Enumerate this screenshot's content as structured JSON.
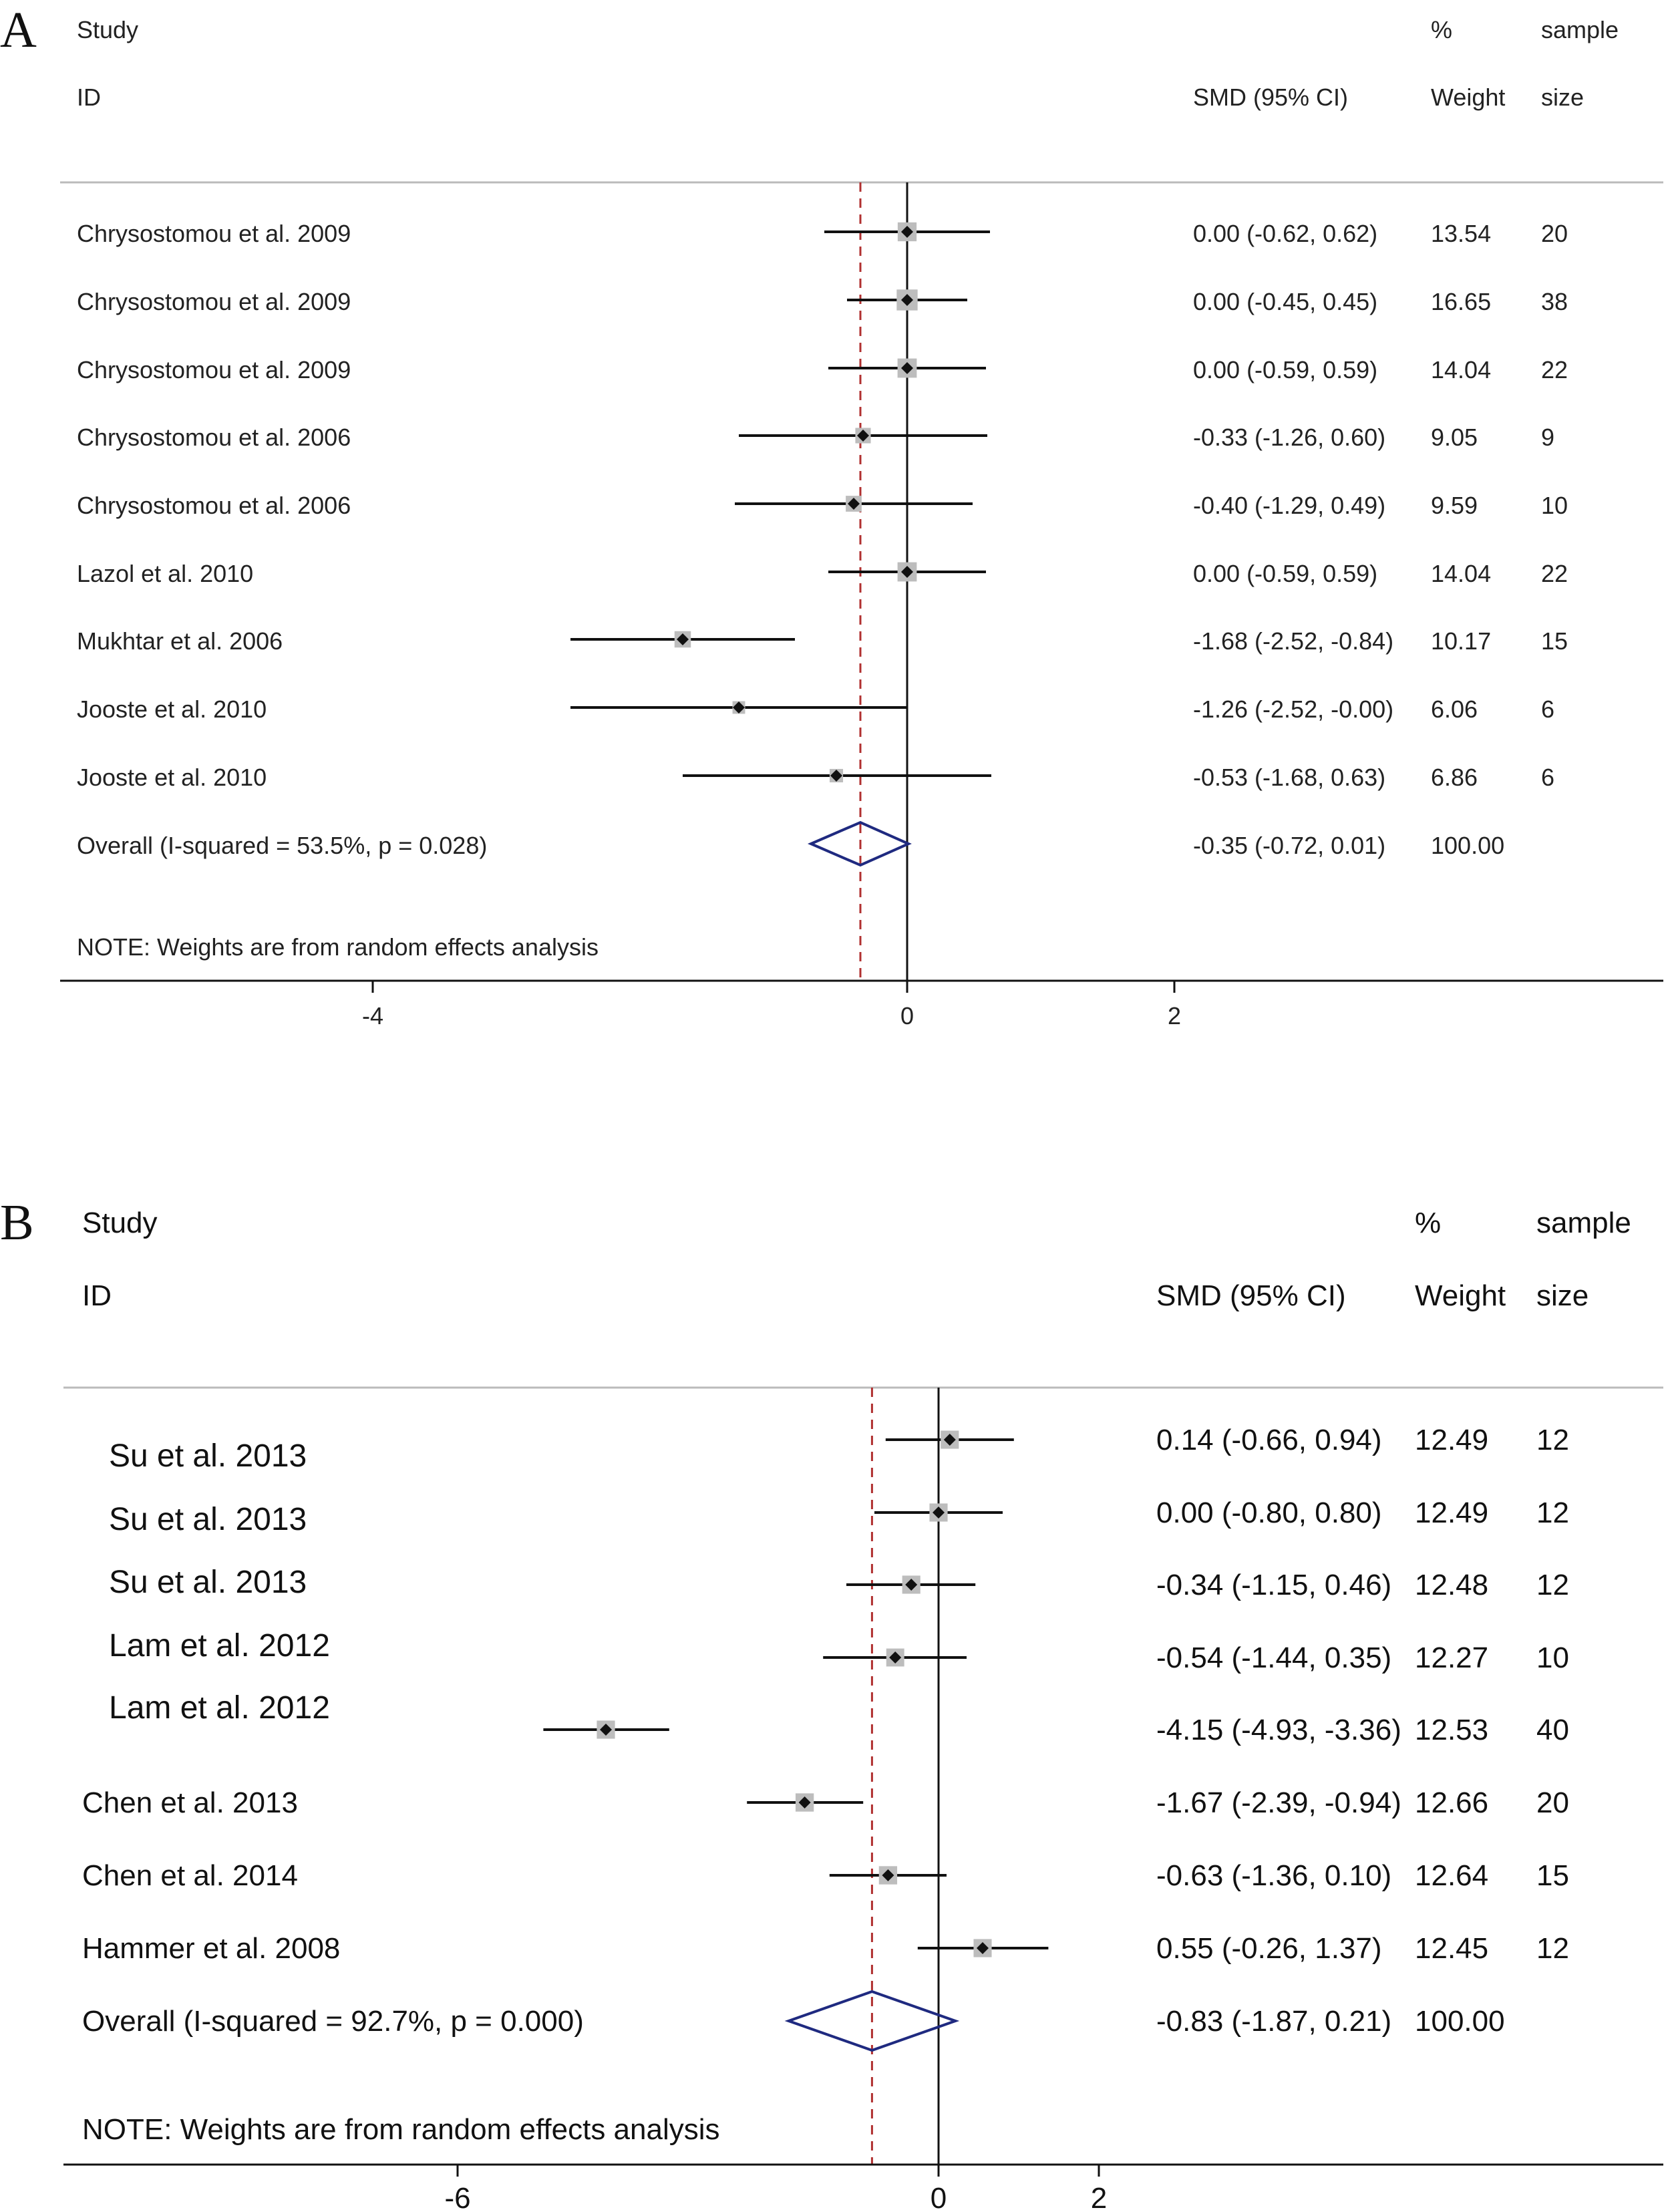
{
  "chart_data": [
    {
      "type": "forest",
      "panel_label": "A",
      "header": {
        "study": "Study",
        "id": "ID",
        "effect": "SMD (95% CI)",
        "pct": "%",
        "weight": "Weight",
        "sample": "sample",
        "size": "size"
      },
      "studies": [
        {
          "name": "Chrysostomou et al. 2009",
          "smd": 0.0,
          "lo": -0.62,
          "hi": 0.62,
          "ci_text": "0.00 (-0.62, 0.62)",
          "weight": "13.54",
          "n": "20"
        },
        {
          "name": "Chrysostomou et al. 2009",
          "smd": 0.0,
          "lo": -0.45,
          "hi": 0.45,
          "ci_text": "0.00 (-0.45, 0.45)",
          "weight": "16.65",
          "n": "38"
        },
        {
          "name": "Chrysostomou et al. 2009",
          "smd": 0.0,
          "lo": -0.59,
          "hi": 0.59,
          "ci_text": "0.00 (-0.59, 0.59)",
          "weight": "14.04",
          "n": "22"
        },
        {
          "name": "Chrysostomou et al. 2006",
          "smd": -0.33,
          "lo": -1.26,
          "hi": 0.6,
          "ci_text": "-0.33 (-1.26, 0.60)",
          "weight": "9.05",
          "n": "9"
        },
        {
          "name": "Chrysostomou et al. 2006",
          "smd": -0.4,
          "lo": -1.29,
          "hi": 0.49,
          "ci_text": "-0.40 (-1.29, 0.49)",
          "weight": "9.59",
          "n": "10"
        },
        {
          "name": "Lazol et al. 2010",
          "smd": 0.0,
          "lo": -0.59,
          "hi": 0.59,
          "ci_text": "0.00 (-0.59, 0.59)",
          "weight": "14.04",
          "n": "22"
        },
        {
          "name": "Mukhtar et al. 2006",
          "smd": -1.68,
          "lo": -2.52,
          "hi": -0.84,
          "ci_text": "-1.68 (-2.52, -0.84)",
          "weight": "10.17",
          "n": "15"
        },
        {
          "name": "Jooste et al. 2010",
          "smd": -1.26,
          "lo": -2.52,
          "hi": -0.0,
          "ci_text": "-1.26 (-2.52, -0.00)",
          "weight": "6.06",
          "n": "6"
        },
        {
          "name": "Jooste et al. 2010",
          "smd": -0.53,
          "lo": -1.68,
          "hi": 0.63,
          "ci_text": "-0.53 (-1.68, 0.63)",
          "weight": "6.86",
          "n": "6"
        }
      ],
      "overall": {
        "name": "Overall  (I-squared = 53.5%, p = 0.028)",
        "smd": -0.35,
        "lo": -0.72,
        "hi": 0.01,
        "ci_text": "-0.35 (-0.72, 0.01)",
        "weight": "100.00"
      },
      "note": "NOTE: Weights are from random effects analysis",
      "xticks": [
        -4,
        0,
        2
      ],
      "xtick_labels": [
        "-4",
        "0",
        "2"
      ],
      "xlim": [
        -4.0,
        2.0
      ]
    },
    {
      "type": "forest",
      "panel_label": "B",
      "header": {
        "study": "Study",
        "id": "ID",
        "effect": "SMD (95% CI)",
        "pct": "%",
        "weight": "Weight",
        "sample": "sample",
        "size": "size"
      },
      "studies": [
        {
          "name": "Su et al. 2013",
          "smd": 0.14,
          "lo": -0.66,
          "hi": 0.94,
          "ci_text": "0.14 (-0.66, 0.94)",
          "weight": "12.49",
          "n": "12"
        },
        {
          "name": "Su et al. 2013",
          "smd": 0.0,
          "lo": -0.8,
          "hi": 0.8,
          "ci_text": "0.00 (-0.80, 0.80)",
          "weight": "12.49",
          "n": "12"
        },
        {
          "name": "Su et al. 2013",
          "smd": -0.34,
          "lo": -1.15,
          "hi": 0.46,
          "ci_text": "-0.34 (-1.15, 0.46)",
          "weight": "12.48",
          "n": "12"
        },
        {
          "name": "Lam et al. 2012",
          "smd": -0.54,
          "lo": -1.44,
          "hi": 0.35,
          "ci_text": "-0.54 (-1.44, 0.35)",
          "weight": "12.27",
          "n": "10"
        },
        {
          "name": "Lam et al. 2012",
          "smd": -4.15,
          "lo": -4.93,
          "hi": -3.36,
          "ci_text": "-4.15 (-4.93, -3.36)",
          "weight": "12.53",
          "n": "40"
        },
        {
          "name": "Chen et al. 2013",
          "smd": -1.67,
          "lo": -2.39,
          "hi": -0.94,
          "ci_text": "-1.67 (-2.39, -0.94)",
          "weight": "12.66",
          "n": "20"
        },
        {
          "name": "Chen et al. 2014",
          "smd": -0.63,
          "lo": -1.36,
          "hi": 0.1,
          "ci_text": "-0.63 (-1.36, 0.10)",
          "weight": "12.64",
          "n": "15"
        },
        {
          "name": "Hammer et al. 2008",
          "smd": 0.55,
          "lo": -0.26,
          "hi": 1.37,
          "ci_text": "0.55 (-0.26, 1.37)",
          "weight": "12.45",
          "n": "12"
        }
      ],
      "overall": {
        "name": "Overall  (I-squared = 92.7%, p = 0.000)",
        "smd": -0.83,
        "lo": -1.87,
        "hi": 0.21,
        "ci_text": "-0.83 (-1.87, 0.21)",
        "weight": "100.00"
      },
      "note": "NOTE: Weights are from random effects analysis",
      "xticks": [
        -6,
        0,
        2
      ],
      "xtick_labels": [
        "-6",
        "0",
        "2"
      ],
      "xlim": [
        -6.0,
        2.0
      ]
    }
  ]
}
